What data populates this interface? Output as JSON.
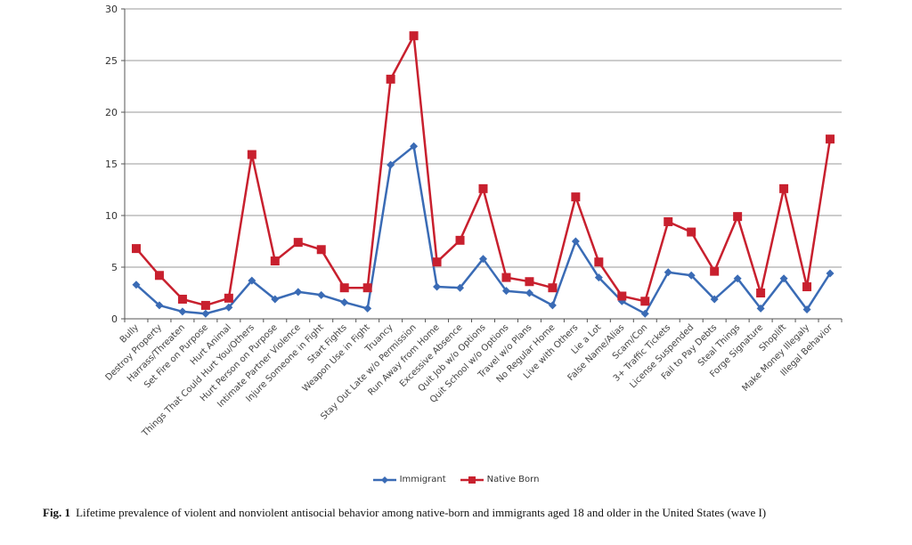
{
  "chart_data": {
    "type": "line",
    "title": "",
    "xlabel": "",
    "ylabel": "",
    "ylim": [
      0,
      30
    ],
    "yticks": [
      0,
      5,
      10,
      15,
      20,
      25,
      30
    ],
    "grid": true,
    "legend_position": "bottom",
    "categories": [
      "Bully",
      "Destroy Property",
      "Harrass/Threaten",
      "Set Fire on Purpose",
      "Hurt Animal",
      "Things That Could Hurt You/Others",
      "Hurt Person on Purpose",
      "Intimate Partner Violence",
      "Injure Someone in Fight",
      "Start Fights",
      "Weapon Use in Fight",
      "Truancy",
      "Stay Out Late w/o Permission",
      "Run Away from Home",
      "Excessive Absence",
      "Quit Job w/o Options",
      "Quit School w/o Options",
      "Travel w/o Plans",
      "No Regular Home",
      "Live with Others",
      "Lie a Lot",
      "False Name/Alias",
      "Scam/Con",
      "3+ Traffic Tickets",
      "License Suspended",
      "Fail to Pay Debts",
      "Steal Things",
      "Forge Signature",
      "Shoplift",
      "Make Money Illegaly",
      "Illegal Behavior"
    ],
    "series": [
      {
        "name": "Immigrant",
        "color": "#3a6bb5",
        "marker": "diamond",
        "values": [
          3.3,
          1.3,
          0.7,
          0.5,
          1.1,
          3.7,
          1.9,
          2.6,
          2.3,
          1.6,
          1.0,
          14.9,
          16.7,
          3.1,
          3.0,
          5.8,
          2.7,
          2.5,
          1.3,
          7.5,
          4.0,
          1.7,
          0.5,
          4.5,
          4.2,
          1.9,
          3.9,
          1.0,
          3.9,
          0.9,
          4.4
        ]
      },
      {
        "name": "Native Born",
        "color": "#c8202e",
        "marker": "square",
        "values": [
          6.8,
          4.2,
          1.9,
          1.3,
          2.0,
          15.9,
          5.6,
          7.4,
          6.7,
          3.0,
          3.0,
          23.2,
          27.4,
          5.5,
          7.6,
          12.6,
          4.0,
          3.6,
          3.0,
          11.8,
          5.5,
          2.2,
          1.7,
          9.4,
          8.4,
          4.6,
          9.9,
          2.5,
          12.6,
          3.1,
          17.4
        ]
      }
    ]
  },
  "legend": {
    "items": [
      {
        "label": "Immigrant",
        "color": "#3a6bb5"
      },
      {
        "label": "Native Born",
        "color": "#c8202e"
      }
    ]
  },
  "caption": {
    "label": "Fig. 1",
    "text": "Lifetime prevalence of violent and nonviolent antisocial behavior among native-born and immigrants aged 18 and older in the United States (wave I)"
  }
}
